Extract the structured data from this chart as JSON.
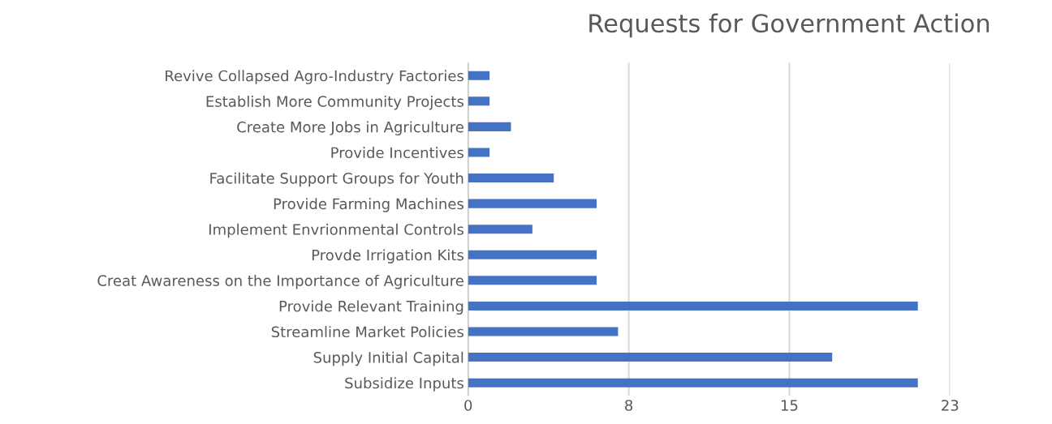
{
  "chart_data": {
    "type": "bar",
    "orientation": "horizontal",
    "title": "Requests for Government Action",
    "categories": [
      "Revive Collapsed Agro-Industry Factories",
      "Establish More Community Projects",
      "Create More Jobs in Agriculture",
      "Provide Incentives",
      "Facilitate Support Groups for Youth",
      "Provide Farming Machines",
      "Implement Envrionmental Controls",
      "Provde Irrigation Kits",
      "Creat Awareness on the Importance of Agriculture",
      "Provide Relevant Training",
      "Streamline Market Policies",
      "Supply Initial Capital",
      "Subsidize Inputs"
    ],
    "values": [
      1,
      1,
      2,
      1,
      4,
      6,
      3,
      6,
      6,
      21,
      7,
      17,
      21
    ],
    "color": "#4472c4",
    "xlim": [
      0,
      22.5
    ],
    "xticks": [
      0,
      {
        "value": 7.5,
        "label": "8"
      },
      15,
      {
        "value": 22.5,
        "label": "23"
      }
    ],
    "grid": "x",
    "legend": false
  }
}
